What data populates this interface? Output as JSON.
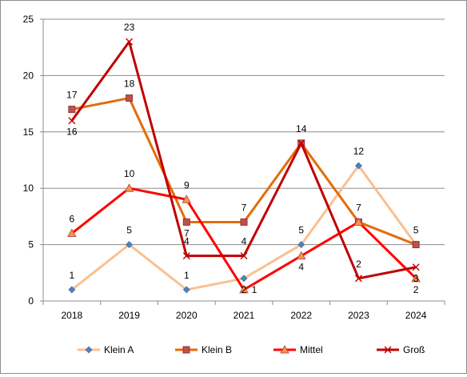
{
  "chart_data": {
    "type": "line",
    "categories": [
      "2018",
      "2019",
      "2020",
      "2021",
      "2022",
      "2023",
      "2024"
    ],
    "ylim": [
      0,
      25
    ],
    "yticks": [
      0,
      5,
      10,
      15,
      20,
      25
    ],
    "grid": "horizontal",
    "legend_position": "bottom",
    "series": [
      {
        "name": "Klein A",
        "color": "#FAC090",
        "marker": "diamond",
        "marker_color": "#4F81BD",
        "values": [
          1,
          5,
          1,
          2,
          5,
          12,
          5
        ]
      },
      {
        "name": "Klein B",
        "color": "#E46C0A",
        "marker": "square",
        "marker_color": "#C0504D",
        "values": [
          17,
          18,
          7,
          7,
          14,
          7,
          5
        ]
      },
      {
        "name": "Mittel",
        "color": "#FF0000",
        "marker": "triangle",
        "marker_color": "#F79646",
        "values": [
          6,
          10,
          9,
          1,
          4,
          7,
          2
        ]
      },
      {
        "name": "Groß",
        "color": "#C00000",
        "marker": "x",
        "marker_color": "#C00000",
        "values": [
          16,
          23,
          4,
          4,
          14,
          2,
          3
        ]
      }
    ]
  }
}
